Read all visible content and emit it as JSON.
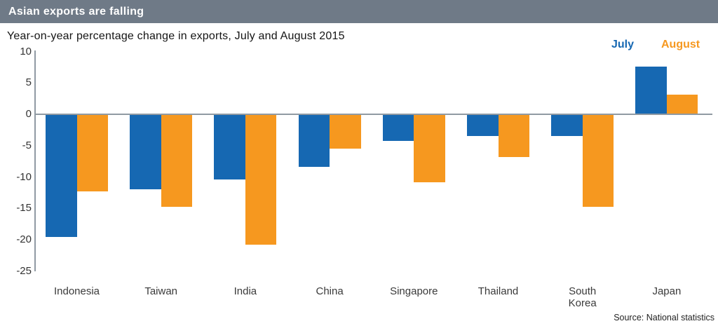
{
  "header": {
    "title": "Asian exports are falling",
    "bg_color": "#6f7a87"
  },
  "subtitle": "Year-on-year percentage change in exports, July and August 2015",
  "legend": [
    {
      "label": "July",
      "color": "#1668b2"
    },
    {
      "label": "August",
      "color": "#f6981f"
    }
  ],
  "source": "Source: National statistics",
  "colors": {
    "axis": "#909aa3",
    "tick_text": "#333333"
  },
  "chart_data": {
    "type": "bar",
    "title": "Asian exports are falling",
    "subtitle": "Year-on-year percentage change in exports, July and August 2015",
    "categories": [
      "Indonesia",
      "Taiwan",
      "India",
      "China",
      "Singapore",
      "Thailand",
      "South Korea",
      "Japan"
    ],
    "series": [
      {
        "name": "July",
        "color": "#1668b2",
        "values": [
          -19.5,
          -11.9,
          -10.4,
          -8.4,
          -4.2,
          -3.5,
          -3.5,
          7.6
        ]
      },
      {
        "name": "August",
        "color": "#f6981f",
        "values": [
          -12.3,
          -14.8,
          -20.8,
          -5.5,
          -10.8,
          -6.8,
          -14.8,
          3.1
        ]
      }
    ],
    "ylim": [
      -25,
      10
    ],
    "yticks": [
      10,
      5,
      0,
      -5,
      -10,
      -15,
      -20,
      -25
    ],
    "xlabel": "",
    "ylabel": "",
    "grid": false,
    "legend_position": "top-right",
    "baseline": 0
  }
}
